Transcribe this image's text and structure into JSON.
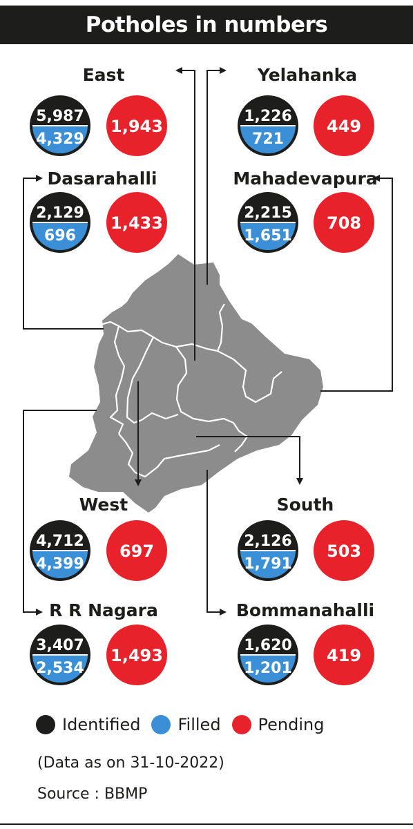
{
  "title": "Potholes in numbers",
  "chart_data": {
    "type": "table",
    "columns": [
      "Identified",
      "Filled",
      "Pending"
    ],
    "zones": [
      {
        "name": "East",
        "identified": "5,987",
        "filled": "4,329",
        "pending": "1,943"
      },
      {
        "name": "Yelahanka",
        "identified": "1,226",
        "filled": "721",
        "pending": "449"
      },
      {
        "name": "Dasarahalli",
        "identified": "2,129",
        "filled": "696",
        "pending": "1,433"
      },
      {
        "name": "Mahadevapura",
        "identified": "2,215",
        "filled": "1,651",
        "pending": "708"
      },
      {
        "name": "West",
        "identified": "4,712",
        "filled": "4,399",
        "pending": "697"
      },
      {
        "name": "South",
        "identified": "2,126",
        "filled": "1,791",
        "pending": "503"
      },
      {
        "name": "R R Nagara",
        "identified": "3,407",
        "filled": "2,534",
        "pending": "1,493"
      },
      {
        "name": "Bommanahalli",
        "identified": "1,620",
        "filled": "1,201",
        "pending": "419"
      }
    ]
  },
  "legend": [
    {
      "label": "Identified",
      "color": "#1d1d1b"
    },
    {
      "label": "Filled",
      "color": "#3b8fd6"
    },
    {
      "label": "Pending",
      "color": "#e8222b"
    }
  ],
  "note": "(Data as on 31-10-2022)",
  "source": "Source : BBMP",
  "colors": {
    "identified": "#1d1d1b",
    "filled": "#3b8fd6",
    "pending": "#e8222b",
    "map": "#8c8c8c"
  }
}
